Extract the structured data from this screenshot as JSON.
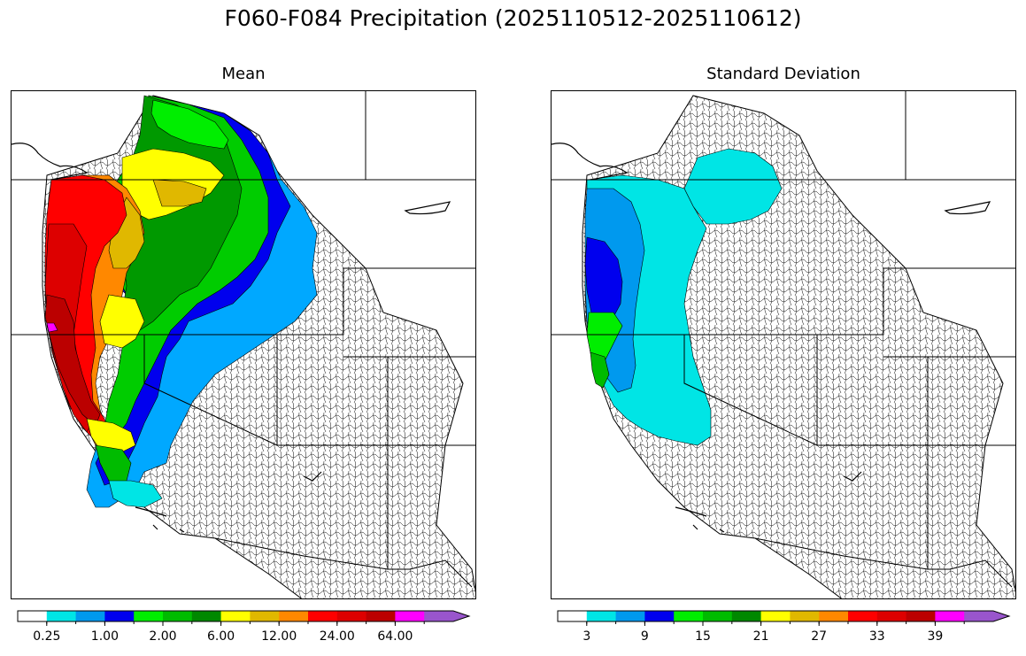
{
  "title": "F060-F084 Precipitation (2025110512-2025110612)",
  "panels": [
    {
      "id": "mean",
      "title": "Mean",
      "colorbar": {
        "colors": [
          "#ffffff",
          "#00e5e5",
          "#0099ee",
          "#0000ee",
          "#00ee00",
          "#00bb00",
          "#008800",
          "#ffff00",
          "#e0b800",
          "#ff8800",
          "#ff0000",
          "#dd0000",
          "#bb0000",
          "#ff00ff",
          "#9955cc"
        ],
        "tick_labels": [
          "0.25",
          "1.00",
          "2.00",
          "6.00",
          "12.00",
          "24.00",
          "64.00"
        ],
        "tick_label_boundaries": [
          1,
          3,
          5,
          7,
          9,
          11,
          13
        ]
      }
    },
    {
      "id": "stddev",
      "title": "Standard Deviation",
      "colorbar": {
        "colors": [
          "#ffffff",
          "#00e5e5",
          "#0099ee",
          "#0000ee",
          "#00ee00",
          "#00bb00",
          "#008800",
          "#ffff00",
          "#e0b800",
          "#ff8800",
          "#ff0000",
          "#dd0000",
          "#bb0000",
          "#ff00ff",
          "#9955cc"
        ],
        "tick_labels": [
          "3",
          "9",
          "15",
          "21",
          "27",
          "33",
          "39"
        ],
        "tick_label_boundaries": [
          1,
          3,
          5,
          7,
          9,
          11,
          13
        ]
      }
    }
  ]
}
